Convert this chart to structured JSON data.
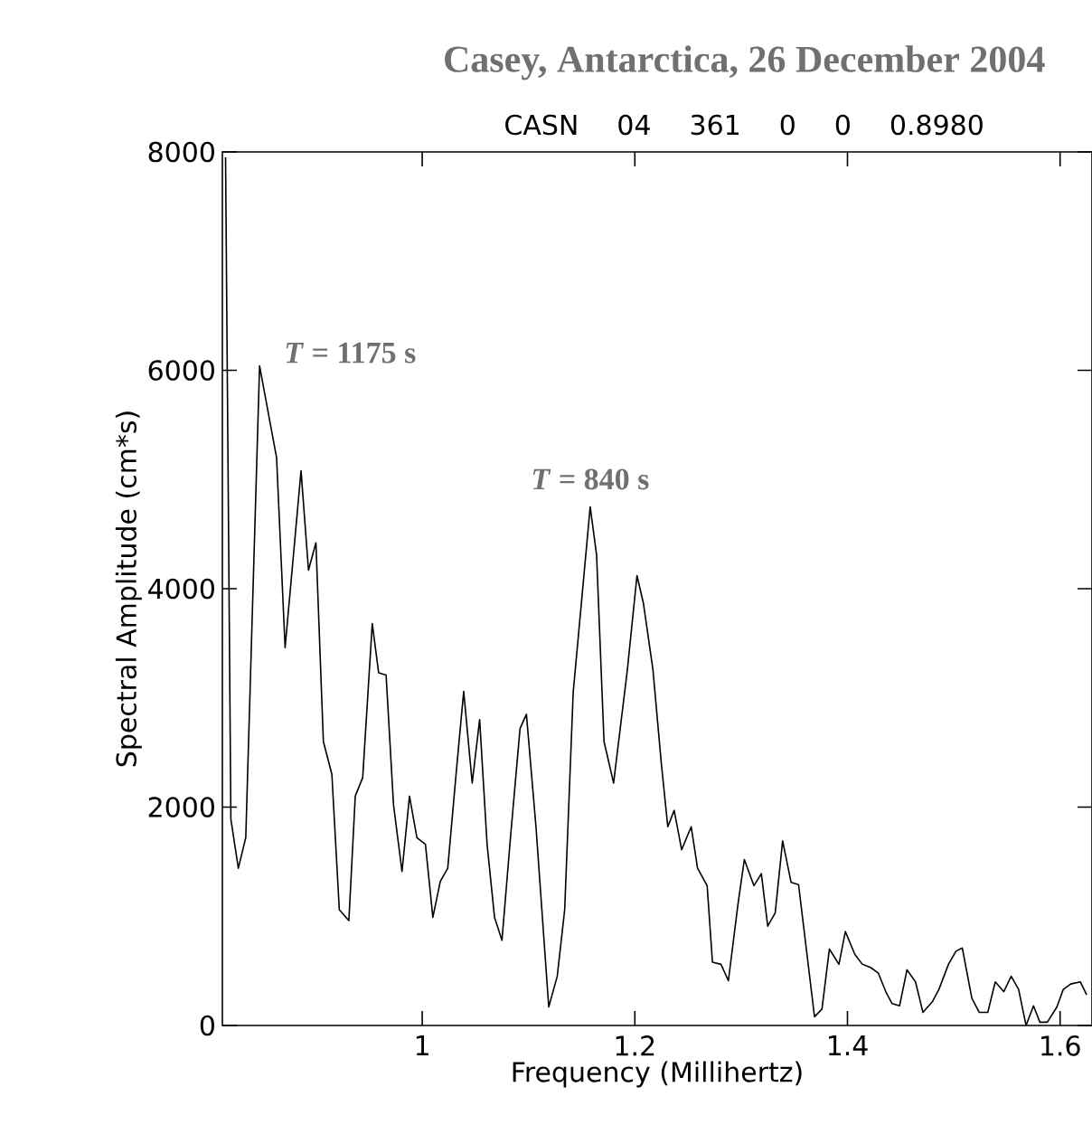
{
  "chart_data": {
    "type": "line",
    "title": "Casey, Antarctica, 26 December 2004",
    "subtitle": "CASN 04 361 0 0 0.8980",
    "xlabel": "Frequency (Millihertz)",
    "ylabel": "Spectral Amplitude (cm*s)",
    "xlim": [
      0.812,
      1.63
    ],
    "ylim": [
      0,
      8000
    ],
    "xticks": [
      1,
      1.2,
      1.4,
      1.6
    ],
    "yticks": [
      0,
      2000,
      4000,
      6000,
      8000
    ],
    "grid": false,
    "color": "#000000",
    "line_style": "solid",
    "marker": "none",
    "annotations": [
      {
        "text": "*T* = 1175 s",
        "x": 0.847,
        "y": 6040
      },
      {
        "text": "*T* = 840 s",
        "x": 1.158,
        "y": 4750
      }
    ],
    "x": [
      0.815,
      0.82,
      0.827,
      0.834,
      0.847,
      0.863,
      0.871,
      0.886,
      0.893,
      0.9,
      0.907,
      0.915,
      0.922,
      0.931,
      0.937,
      0.944,
      0.953,
      0.959,
      0.966,
      0.973,
      0.981,
      0.988,
      0.995,
      1.003,
      1.01,
      1.017,
      1.024,
      1.032,
      1.039,
      1.047,
      1.054,
      1.061,
      1.068,
      1.075,
      1.083,
      1.092,
      1.098,
      1.107,
      1.119,
      1.127,
      1.134,
      1.142,
      1.158,
      1.164,
      1.171,
      1.18,
      1.193,
      1.202,
      1.208,
      1.217,
      1.225,
      1.231,
      1.237,
      1.244,
      1.253,
      1.259,
      1.268,
      1.273,
      1.281,
      1.288,
      1.297,
      1.303,
      1.312,
      1.319,
      1.325,
      1.332,
      1.339,
      1.347,
      1.354,
      1.369,
      1.376,
      1.383,
      1.392,
      1.398,
      1.407,
      1.414,
      1.422,
      1.429,
      1.436,
      1.442,
      1.449,
      1.456,
      1.464,
      1.471,
      1.48,
      1.486,
      1.495,
      1.502,
      1.508,
      1.517,
      1.524,
      1.532,
      1.539,
      1.547,
      1.554,
      1.561,
      1.568,
      1.575,
      1.581,
      1.588,
      1.597,
      1.603,
      1.61,
      1.619,
      1.625
    ],
    "values": [
      7950,
      1890,
      1440,
      1720,
      6040,
      5200,
      3460,
      5080,
      4170,
      4420,
      2600,
      2300,
      1060,
      960,
      2100,
      2270,
      3680,
      3230,
      3210,
      2020,
      1410,
      2100,
      1720,
      1660,
      990,
      1320,
      1440,
      2320,
      3060,
      2220,
      2800,
      1660,
      990,
      780,
      1720,
      2720,
      2850,
      1820,
      170,
      450,
      1060,
      3050,
      4750,
      4310,
      2600,
      2220,
      3260,
      4120,
      3870,
      3260,
      2390,
      1820,
      1970,
      1610,
      1820,
      1440,
      1280,
      580,
      560,
      410,
      1110,
      1520,
      1280,
      1390,
      910,
      1030,
      1690,
      1310,
      1290,
      80,
      150,
      700,
      560,
      860,
      650,
      560,
      530,
      480,
      310,
      200,
      180,
      510,
      400,
      120,
      220,
      330,
      560,
      680,
      710,
      250,
      120,
      120,
      400,
      310,
      450,
      330,
      0,
      180,
      30,
      30,
      170,
      330,
      380,
      400,
      280
    ]
  }
}
